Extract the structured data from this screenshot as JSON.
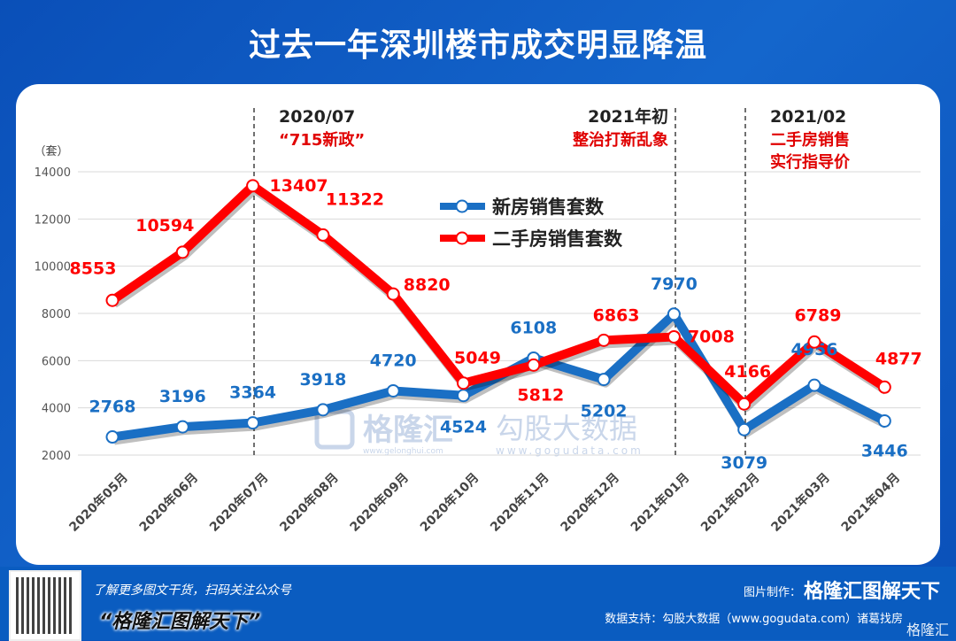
{
  "title": "过去一年深圳楼市成交明显降温",
  "chart_data": {
    "type": "line",
    "title": "过去一年深圳楼市成交明显降温",
    "ylabel": "（套）",
    "ylim": [
      2000,
      14000
    ],
    "yticks": [
      2000,
      4000,
      6000,
      8000,
      10000,
      12000,
      14000
    ],
    "grid": true,
    "legend_position": "center-top",
    "categories": [
      "2020年05月",
      "2020年06月",
      "2020年07月",
      "2020年08月",
      "2020年09月",
      "2020年10月",
      "2020年11月",
      "2020年12月",
      "2021年01月",
      "2021年02月",
      "2021年03月",
      "2021年04月"
    ],
    "series": [
      {
        "name": "新房销售套数",
        "color": "#1a6fc4",
        "values": [
          2768,
          3196,
          3364,
          3918,
          4720,
          4524,
          6108,
          5202,
          7970,
          3079,
          4956,
          3446
        ]
      },
      {
        "name": "二手房销售套数",
        "color": "#ff0000",
        "values": [
          8553,
          10594,
          13407,
          11322,
          8820,
          5049,
          5812,
          6863,
          7008,
          4166,
          6789,
          4877
        ]
      }
    ],
    "annotations": [
      {
        "at": "2020年07月",
        "line1": "2020/07",
        "line2": "“715新政”"
      },
      {
        "at": "2021年01月",
        "line1": "2021年初",
        "line2": "整治打新乱象"
      },
      {
        "at": "2021年02月",
        "line1": "2021/02",
        "line2": "二手房销售",
        "line3": "实行指导价"
      }
    ]
  },
  "watermark": {
    "brand1": "格隆汇",
    "brand1_url": "www.gelonghui.com",
    "brand2": "勾股大数据",
    "brand2_url": "www.gogudata.com"
  },
  "footer": {
    "subscribe": "了解更多图文干货，扫码关注公众号",
    "slogan": "“格隆汇图解天下”",
    "made_by_label": "图片制作：",
    "made_by": "格隆汇图解天下",
    "data_support": "数据支持：勾股大数据（www.gogudata.com）诸葛找房",
    "logo": "格隆汇"
  }
}
